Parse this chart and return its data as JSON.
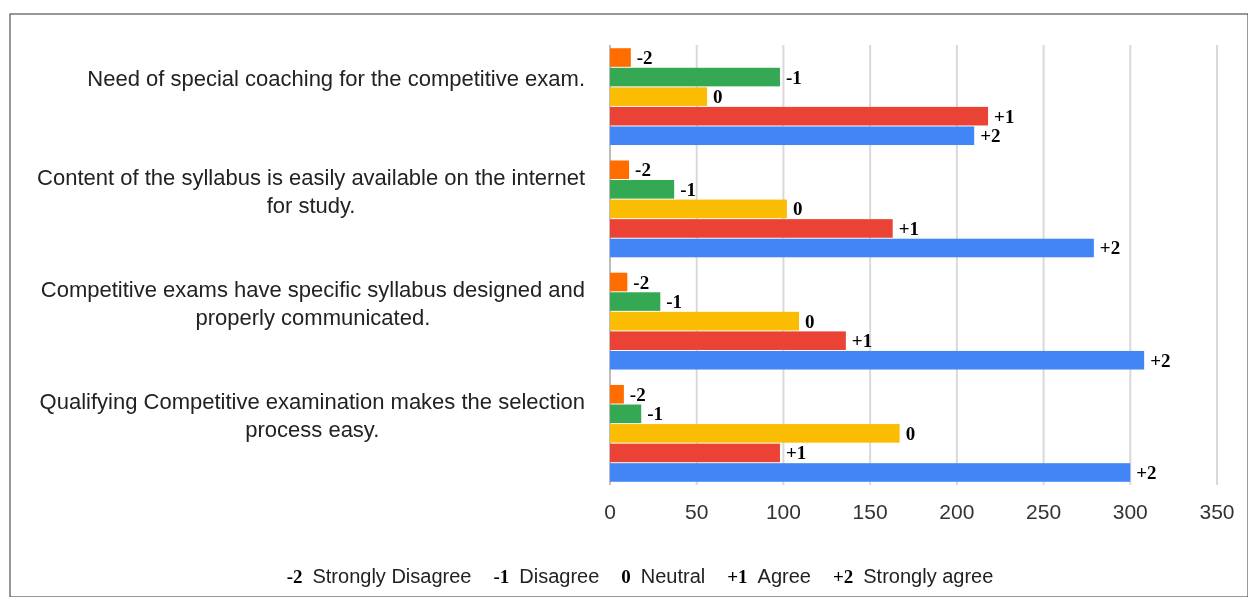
{
  "chart_data": {
    "type": "bar",
    "orientation": "horizontal",
    "categories": [
      "Need of special coaching for the competitive exam.",
      "Content of the syllabus is easily available on the internet for study.",
      "Competitive exams have specific syllabus designed and properly communicated.",
      "Qualifying Competitive examination makes the selection process easy."
    ],
    "series": [
      {
        "name": "-2",
        "color": "#ff6d01",
        "values": [
          12,
          11,
          10,
          8
        ]
      },
      {
        "name": "-1",
        "color": "#34a853",
        "values": [
          98,
          37,
          29,
          18
        ]
      },
      {
        "name": "0",
        "color": "#fbbc04",
        "values": [
          56,
          102,
          109,
          167
        ]
      },
      {
        "name": "+1",
        "color": "#ea4335",
        "values": [
          218,
          163,
          136,
          98
        ]
      },
      {
        "name": "+2",
        "color": "#4285f4",
        "values": [
          210,
          279,
          308,
          300
        ]
      }
    ],
    "annotations": [
      "Strongly Disagree",
      "Disagree",
      "Neutral",
      "Agree",
      "Strongly agree"
    ],
    "xlim": [
      0,
      350
    ],
    "xticks": [
      0,
      50,
      100,
      150,
      200,
      250,
      300,
      350
    ],
    "grid": "x"
  }
}
